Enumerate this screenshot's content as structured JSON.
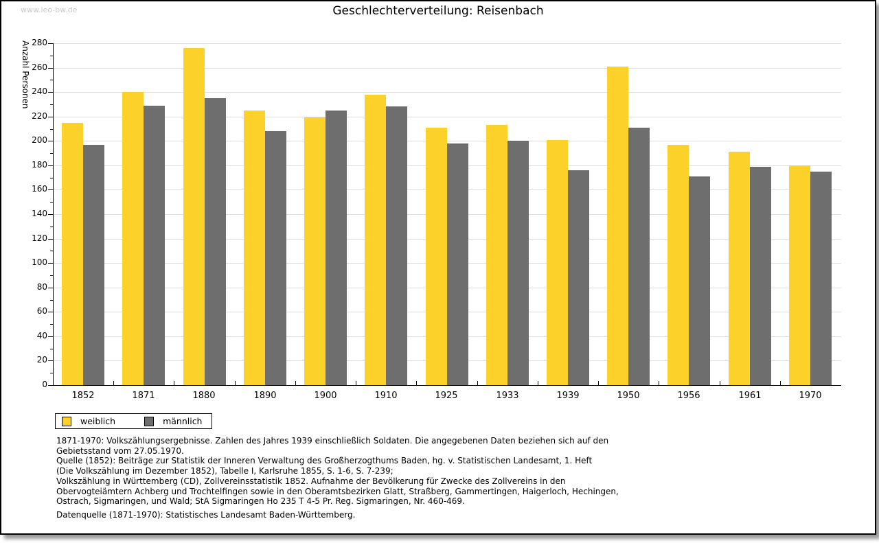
{
  "watermark": "www.leo-bw.de",
  "chart_data": {
    "type": "bar",
    "title": "Geschlechterverteilung: Reisenbach",
    "ylabel": "Anzahl Personen",
    "xlabel": "",
    "ylim": [
      0,
      280
    ],
    "ytick_step": 20,
    "minor_tick_step": 10,
    "grid": true,
    "legend_position": "bottom-left",
    "categories": [
      "1852",
      "1871",
      "1880",
      "1890",
      "1900",
      "1910",
      "1925",
      "1933",
      "1939",
      "1950",
      "1956",
      "1961",
      "1970"
    ],
    "series": [
      {
        "name": "weiblich",
        "color": "#FCD12A",
        "values": [
          215,
          240,
          276,
          225,
          219,
          238,
          211,
          213,
          201,
          261,
          197,
          191,
          180
        ]
      },
      {
        "name": "männlich",
        "color": "#6E6E6E",
        "values": [
          197,
          229,
          235,
          208,
          225,
          228,
          198,
          200,
          176,
          211,
          171,
          179,
          175
        ]
      }
    ],
    "colors": {
      "grid": "#dedede",
      "axis": "#000000"
    }
  },
  "footnote": {
    "lines": [
      "1871-1970: Volkszählungsergebnisse. Zahlen des Jahres 1939 einschließlich Soldaten. Die angegebenen Daten beziehen sich auf den",
      "Gebietsstand vom 27.05.1970.",
      "Quelle (1852): Beiträge zur Statistik der Inneren Verwaltung des Großherzogthums Baden, hg. v. Statistischen Landesamt, 1. Heft",
      "(Die Volkszählung im Dezember 1852), Tabelle I, Karlsruhe 1855, S. 1-6, S. 7-239;",
      "Volkszählung in Württemberg (CD), Zollvereinsstatistik 1852. Aufnahme der Bevölkerung für Zwecke des Zollvereins in den",
      "Obervogteiämtern Achberg und Trochtelfingen sowie in den Oberamtsbezirken Glatt, Straßberg, Gammertingen, Haigerloch, Hechingen,",
      "Ostrach, Sigmaringen, und Wald; StA Sigmaringen Ho 235 T 4-5 Pr. Reg. Sigmaringen, Nr. 460-469."
    ],
    "datenquelle": "Datenquelle (1871-1970): Statistisches Landesamt Baden-Württemberg."
  }
}
